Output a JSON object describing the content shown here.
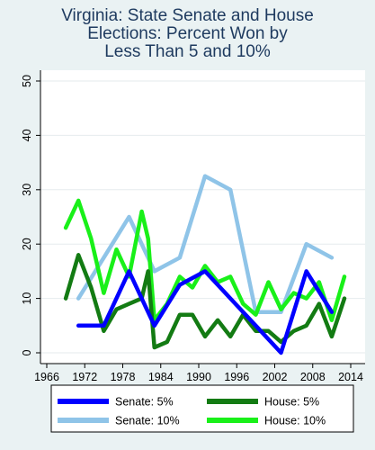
{
  "chart_data": {
    "type": "line",
    "title_lines": [
      "Virginia: State Senate and House",
      "Elections: Percent Won by",
      "Less Than 5 and 10%"
    ],
    "xlim": [
      1966,
      2014
    ],
    "ylim": [
      0,
      50
    ],
    "xticks": [
      "1966",
      "1972",
      "1978",
      "1984",
      "1990",
      "1996",
      "2002",
      "2008",
      "2014"
    ],
    "yticks": [
      "0",
      "10",
      "20",
      "30",
      "40",
      "50"
    ],
    "grid": true,
    "legend_position": "bottom",
    "series": [
      {
        "name": "Senate: 5%",
        "color": "#0000ff",
        "x": [
          1971,
          1975,
          1979,
          1983,
          1987,
          1991,
          1995,
          1999,
          2003,
          2007,
          2011
        ],
        "y": [
          5,
          5,
          15,
          5,
          12.5,
          15,
          10,
          5,
          0,
          15,
          7.5
        ]
      },
      {
        "name": "Senate: 10%",
        "color": "#8fc4e8",
        "x": [
          1971,
          1975,
          1979,
          1983,
          1987,
          1991,
          1995,
          1999,
          2003,
          2007,
          2011
        ],
        "y": [
          10,
          17.5,
          25,
          15,
          17.5,
          32.5,
          30,
          7.5,
          7.5,
          20,
          17.5
        ]
      },
      {
        "name": "House: 5%",
        "color": "#137b13",
        "x": [
          1969,
          1971,
          1973,
          1975,
          1977,
          1979,
          1981,
          1982,
          1983,
          1985,
          1987,
          1989,
          1991,
          1993,
          1995,
          1997,
          1999,
          2001,
          2003,
          2005,
          2007,
          2009,
          2011,
          2013
        ],
        "y": [
          10,
          18,
          12,
          4,
          8,
          9,
          10,
          15,
          1,
          2,
          7,
          7,
          3,
          6,
          3,
          7,
          4,
          4,
          2,
          4,
          5,
          9,
          3,
          10
        ]
      },
      {
        "name": "House: 10%",
        "color": "#19f019",
        "x": [
          1969,
          1971,
          1973,
          1975,
          1977,
          1979,
          1981,
          1982,
          1983,
          1985,
          1987,
          1989,
          1991,
          1993,
          1995,
          1997,
          1999,
          2001,
          2003,
          2005,
          2007,
          2009,
          2011,
          2013
        ],
        "y": [
          23,
          28,
          21,
          11,
          19,
          14,
          26,
          21,
          6,
          9,
          14,
          12,
          16,
          13,
          14,
          9,
          7,
          13,
          8,
          11,
          10,
          13,
          6,
          14
        ]
      }
    ],
    "legend_rows": [
      [
        "Senate: 5%",
        "House: 5%"
      ],
      [
        "Senate: 10%",
        "House: 10%"
      ]
    ]
  }
}
